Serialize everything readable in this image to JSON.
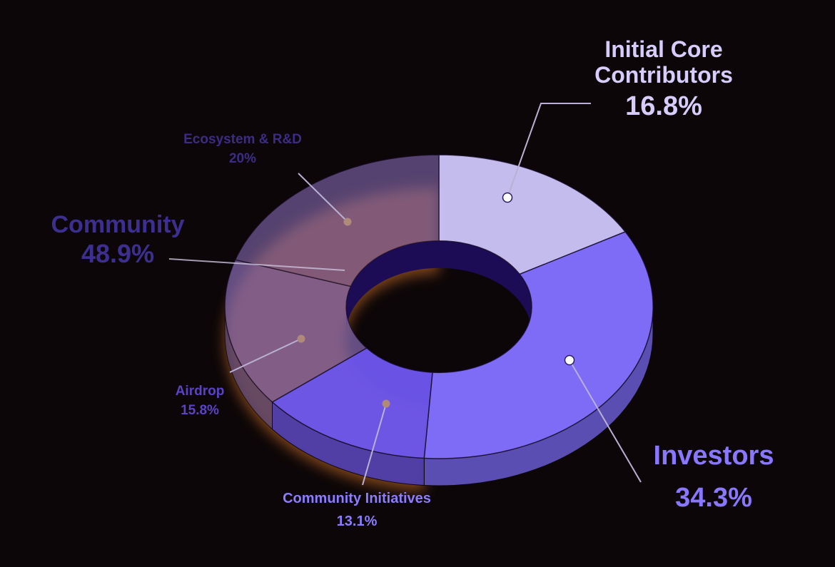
{
  "chart_data": {
    "type": "pie",
    "variant": "3d-donut",
    "groups": [
      {
        "name": "Community",
        "value": 48.9,
        "value_label": "48.9%",
        "color": "#3a2a8a"
      }
    ],
    "slices": [
      {
        "id": "ecosystem",
        "name": "Ecosystem & R&D",
        "value": 20,
        "value_label": "20%",
        "group": "Community",
        "color": "#8468b0"
      },
      {
        "id": "airdrop",
        "name": "Airdrop",
        "value": 15.8,
        "value_label": "15.8%",
        "group": "Community",
        "color": "#8468b0"
      },
      {
        "id": "initiatives",
        "name": "Community Initiatives",
        "value": 13.1,
        "value_label": "13.1%",
        "group": "Community",
        "color": "#6e57f0"
      },
      {
        "id": "core",
        "name": "Initial Core Contributors",
        "value": 16.8,
        "value_label": "16.8%",
        "group": null,
        "color": "#cfc6fb"
      },
      {
        "id": "investors",
        "name": "Investors",
        "value": 34.3,
        "value_label": "34.3%",
        "group": null,
        "color": "#7e6cf7"
      }
    ],
    "label_colors": {
      "core": "#d6cdfc",
      "investors": "#8a77ff",
      "community": "#3c2f8f",
      "ecosystem": "#3b2c85",
      "airdrop": "#5a43c6",
      "initiatives": "#8c7cff"
    }
  }
}
